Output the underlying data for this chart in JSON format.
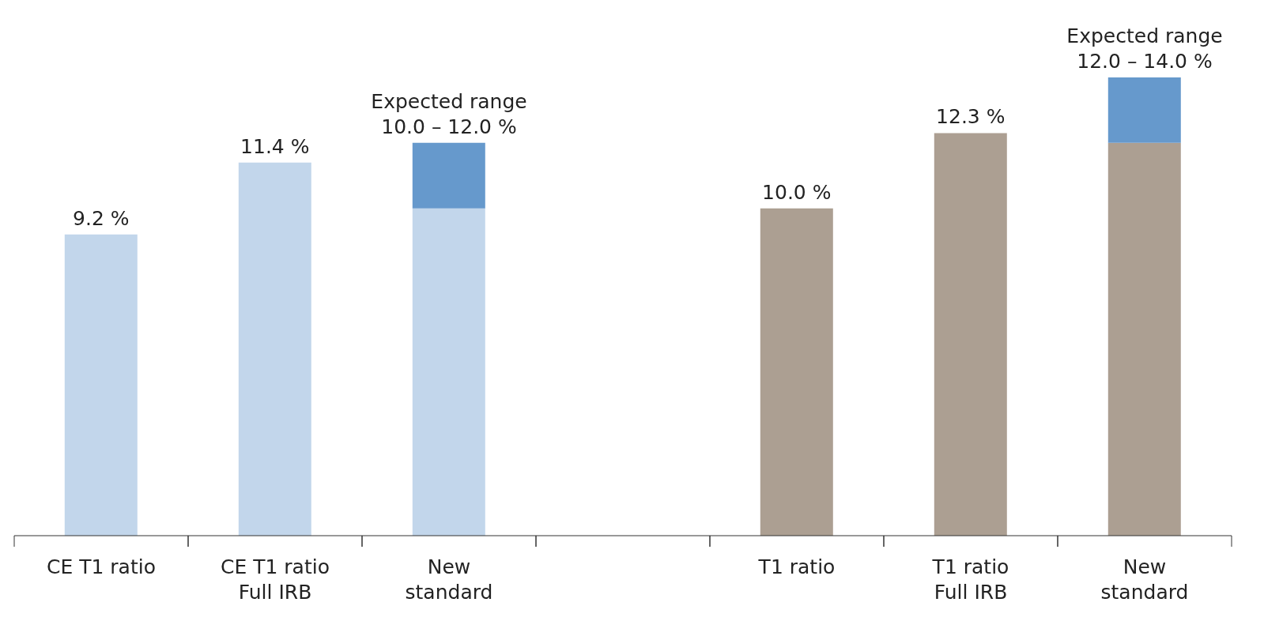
{
  "chart_data": {
    "type": "bar",
    "stacked": true,
    "categories": [
      "CE T1 ratio",
      "CE T1 ratio\nFull IRB",
      "New\nstandard",
      null,
      "T1 ratio",
      "T1 ratio\nFull IRB",
      "New\nstandard"
    ],
    "series": [
      {
        "colors": [
          "#c2d6eb",
          "#c2d6eb",
          "#c2d6eb",
          null,
          "#ac9f92",
          "#ac9f92",
          "#ac9f92"
        ],
        "values": [
          9.2,
          11.4,
          10.0,
          null,
          10.0,
          12.3,
          12.0
        ],
        "value_labels": [
          "9.2 %",
          "11.4 %",
          null,
          null,
          "10.0 %",
          "12.3 %",
          null
        ]
      },
      {
        "colors": [
          null,
          null,
          "#6699cc",
          null,
          null,
          null,
          "#6699cc"
        ],
        "values": [
          null,
          null,
          2.0,
          null,
          null,
          null,
          2.0
        ]
      }
    ],
    "annotations": [
      {
        "text": "Expected range\n10.0 – 12.0 %",
        "x": "New\nstandard",
        "y": 12.0
      },
      "Expected range\n12.0 – 14.0 %"
    ]
  }
}
